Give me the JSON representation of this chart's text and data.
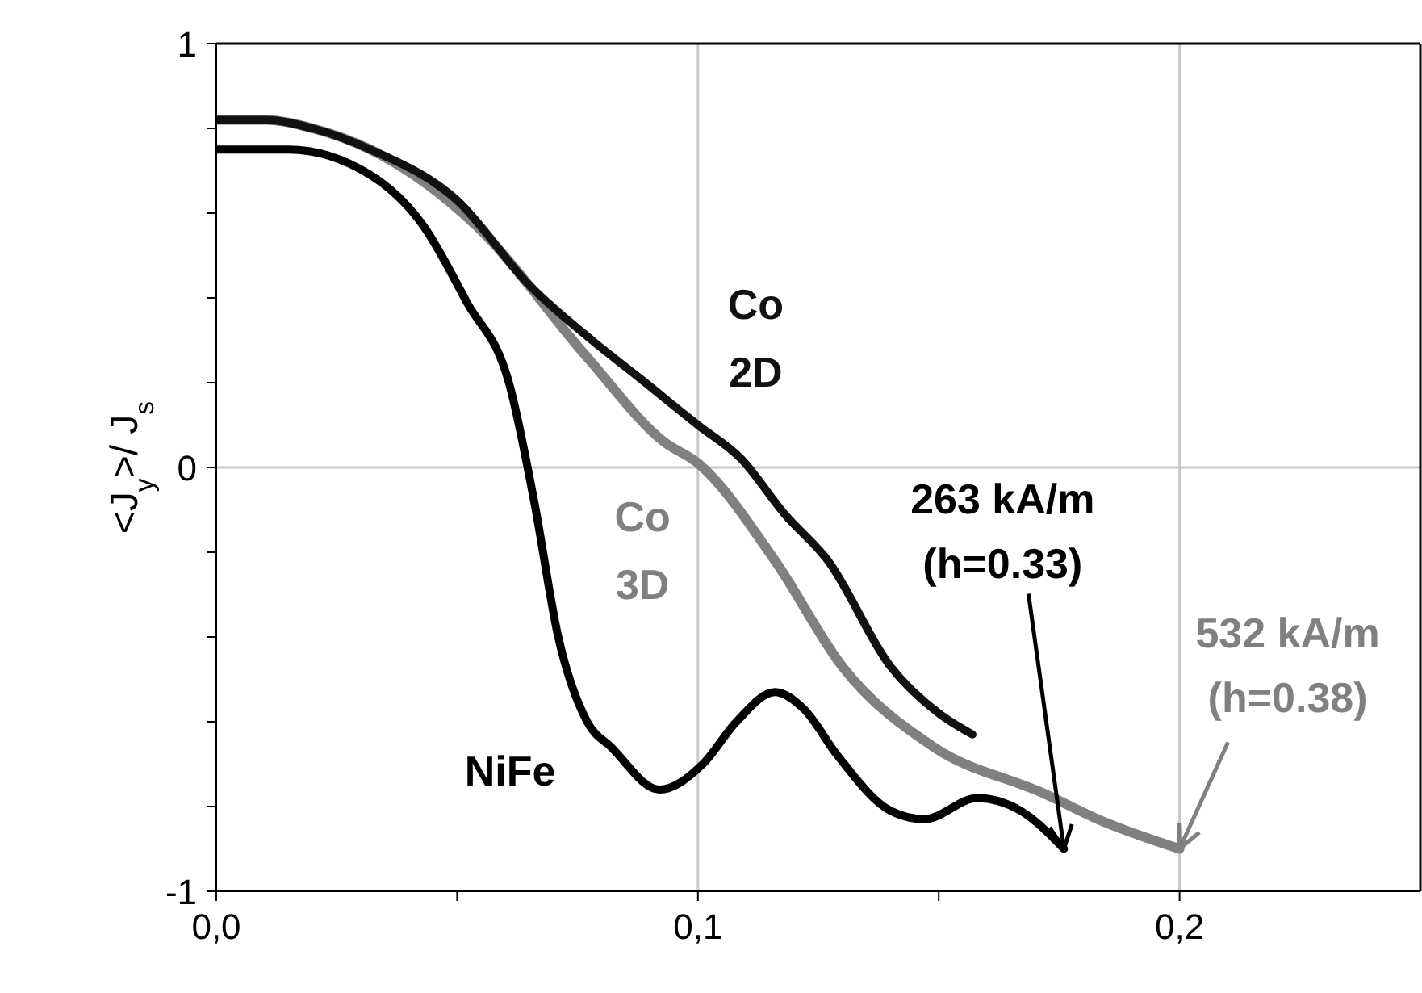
{
  "chart_data": {
    "type": "line",
    "ylabel": "<J$_{y}$>/ J$_{s}$",
    "xlim": [
      0,
      0.25
    ],
    "ylim": [
      -1,
      1
    ],
    "xticks": [
      {
        "value": 0,
        "label": "0,0"
      },
      {
        "value": 0.05,
        "label": null
      },
      {
        "value": 0.1,
        "label": "0,1"
      },
      {
        "value": 0.15,
        "label": null
      },
      {
        "value": 0.2,
        "label": "0,2"
      }
    ],
    "yticks": [
      -1,
      {
        "value": -0.8,
        "label": null
      },
      {
        "value": -0.6,
        "label": null
      },
      {
        "value": -0.4,
        "label": null
      },
      {
        "value": -0.2,
        "label": null
      },
      0,
      {
        "value": 0.2,
        "label": null
      },
      {
        "value": 0.4,
        "label": null
      },
      {
        "value": 0.6,
        "label": null
      },
      {
        "value": 0.8,
        "label": null
      },
      1
    ],
    "grid": true,
    "marker": "none",
    "line_style": "solid",
    "series": [
      {
        "name": "Co 2D",
        "color": "#111111",
        "x": [
          0,
          0.01,
          0.02,
          0.032,
          0.05,
          0.065,
          0.078,
          0.088,
          0.1,
          0.109,
          0.118,
          0.127,
          0.14,
          0.15,
          0.157
        ],
        "values": [
          0.82,
          0.82,
          0.8,
          0.75,
          0.63,
          0.43,
          0.3,
          0.21,
          0.1,
          0.02,
          -0.11,
          -0.22,
          -0.47,
          -0.58,
          -0.63
        ]
      },
      {
        "name": "Co 3D",
        "color": "#808080",
        "x": [
          0,
          0.01,
          0.02,
          0.032,
          0.054,
          0.077,
          0.093,
          0.1,
          0.116,
          0.13,
          0.149,
          0.172,
          0.183,
          0.2
        ],
        "values": [
          0.82,
          0.82,
          0.8,
          0.75,
          0.57,
          0.26,
          0.06,
          0.01,
          -0.22,
          -0.47,
          -0.66,
          -0.77,
          -0.83,
          -0.9
        ]
      },
      {
        "name": "NiFe",
        "color": "#000000",
        "x": [
          0,
          0.015,
          0.032,
          0.043,
          0.052,
          0.061,
          0.066,
          0.071,
          0.077,
          0.082,
          0.092,
          0.101,
          0.108,
          0.116,
          0.122,
          0.129,
          0.14,
          0.147,
          0.158,
          0.167,
          0.176
        ],
        "values": [
          0.75,
          0.75,
          0.69,
          0.57,
          0.39,
          0.19,
          -0.08,
          -0.4,
          -0.6,
          -0.66,
          -0.76,
          -0.7,
          -0.6,
          -0.53,
          -0.57,
          -0.68,
          -0.81,
          -0.83,
          -0.78,
          -0.81,
          -0.9
        ]
      }
    ],
    "annotations": [
      {
        "text": "263 kA/m\n(h=0.33)",
        "x": 0.176,
        "y": -0.9
      },
      {
        "text": "532 kA/m\n(h=0.38)",
        "x": 0.2,
        "y": -0.9
      }
    ]
  }
}
